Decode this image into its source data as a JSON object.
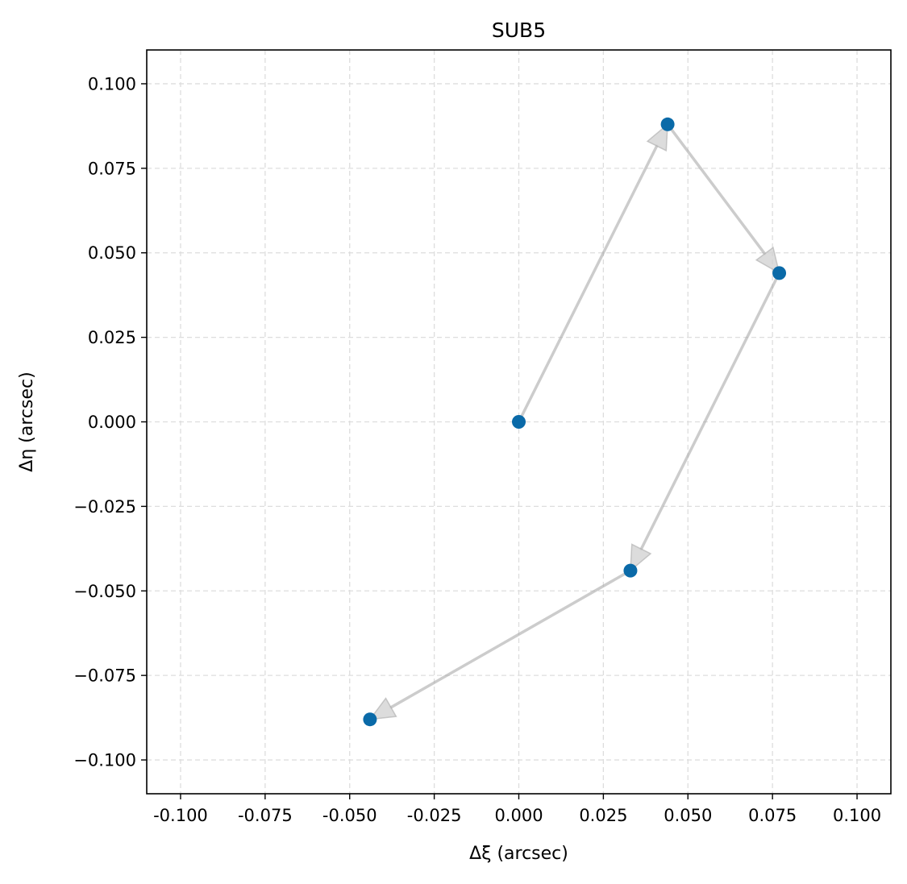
{
  "chart_data": {
    "type": "scatter",
    "title": "SUB5",
    "xlabel": "Δξ (arcsec)",
    "ylabel": "Δη (arcsec)",
    "xlim": [
      -0.11,
      0.11
    ],
    "ylim": [
      -0.11,
      0.11
    ],
    "x_ticks": [
      -0.1,
      -0.075,
      -0.05,
      -0.025,
      0.0,
      0.025,
      0.05,
      0.075,
      0.1
    ],
    "x_tick_labels": [
      "-0.100",
      "-0.075",
      "-0.050",
      "-0.025",
      "0.000",
      "0.025",
      "0.050",
      "0.075",
      "0.100"
    ],
    "y_ticks": [
      0.1,
      0.075,
      0.05,
      0.025,
      0.0,
      -0.025,
      -0.05,
      -0.075,
      -0.1
    ],
    "y_tick_labels": [
      "0.100",
      "0.075",
      "0.050",
      "0.025",
      "0.000",
      "−0.025",
      "−0.050",
      "−0.075",
      "−0.100"
    ],
    "grid": true,
    "grid_style": "dashed",
    "points": [
      {
        "x": 0.0,
        "y": 0.0
      },
      {
        "x": 0.044,
        "y": 0.088
      },
      {
        "x": 0.077,
        "y": 0.044
      },
      {
        "x": 0.033,
        "y": -0.044
      },
      {
        "x": -0.044,
        "y": -0.088
      }
    ],
    "arrows": "sequential",
    "colors": {
      "point": "#0a6aa8",
      "arrow": "#aaaaaa",
      "grid": "#dddddd"
    }
  }
}
